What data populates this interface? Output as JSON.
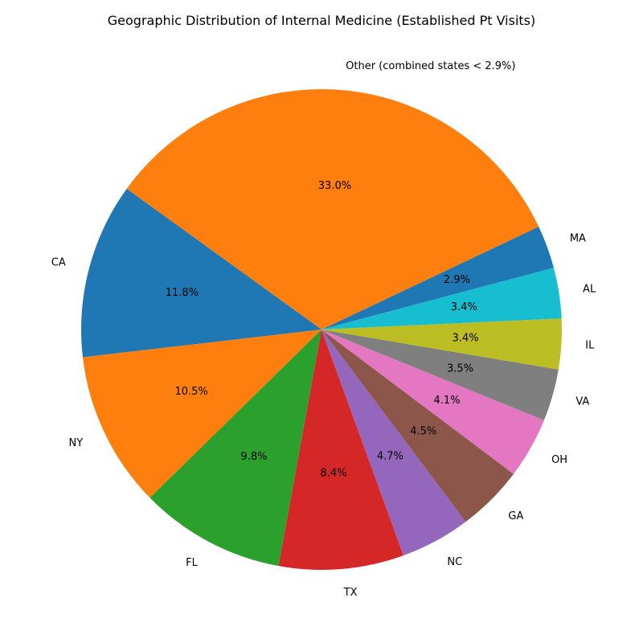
{
  "chart_data": {
    "type": "pie",
    "title": "Geographic Distribution of Internal Medicine (Established Pt Visits)",
    "start_category": "MA",
    "direction": "counterclockwise",
    "slices": [
      {
        "label": "MA",
        "value": 2.9,
        "pct_label": "2.9%",
        "color": "#1f77b4"
      },
      {
        "label": "Other (combined states < 2.9%)",
        "value": 33.0,
        "pct_label": "33.0%",
        "color": "#ff7f0e"
      },
      {
        "label": "CA",
        "value": 11.8,
        "pct_label": "11.8%",
        "color": "#1f77b4"
      },
      {
        "label": "NY",
        "value": 10.5,
        "pct_label": "10.5%",
        "color": "#ff7f0e"
      },
      {
        "label": "FL",
        "value": 9.8,
        "pct_label": "9.8%",
        "color": "#2ca02c"
      },
      {
        "label": "TX",
        "value": 8.4,
        "pct_label": "8.4%",
        "color": "#d62728"
      },
      {
        "label": "NC",
        "value": 4.7,
        "pct_label": "4.7%",
        "color": "#9467bd"
      },
      {
        "label": "GA",
        "value": 4.5,
        "pct_label": "4.5%",
        "color": "#8c564b"
      },
      {
        "label": "OH",
        "value": 4.1,
        "pct_label": "4.1%",
        "color": "#e377c2"
      },
      {
        "label": "VA",
        "value": 3.5,
        "pct_label": "3.5%",
        "color": "#7f7f7f"
      },
      {
        "label": "IL",
        "value": 3.4,
        "pct_label": "3.4%",
        "color": "#bcbd22"
      },
      {
        "label": "AL",
        "value": 3.4,
        "pct_label": "3.4%",
        "color": "#17becf"
      }
    ]
  }
}
